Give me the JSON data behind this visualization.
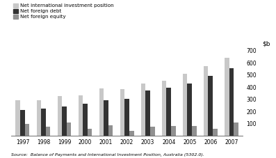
{
  "years": [
    "1997",
    "1998",
    "1999",
    "2000",
    "2001",
    "2002",
    "2003",
    "2004",
    "2005",
    "2006",
    "2007"
  ],
  "net_intl_investment": [
    290,
    295,
    325,
    330,
    390,
    385,
    430,
    455,
    510,
    570,
    640
  ],
  "net_foreign_debt": [
    215,
    225,
    240,
    265,
    290,
    305,
    375,
    395,
    430,
    495,
    555
  ],
  "net_foreign_equity": [
    100,
    78,
    108,
    58,
    88,
    43,
    73,
    83,
    83,
    58,
    108
  ],
  "color_niip": "#c8c8c8",
  "color_debt": "#333333",
  "color_equity": "#909090",
  "ylim": [
    0,
    700
  ],
  "yticks": [
    0,
    100,
    200,
    300,
    400,
    500,
    600,
    700
  ],
  "source": "Source:  Balance of Payments and International Investment Position, Australia (5302.0).",
  "legend_labels": [
    "Net international investment position",
    "Net foreign debt",
    "Net foreign equity"
  ],
  "bar_width": 0.22,
  "background_color": "#ffffff"
}
